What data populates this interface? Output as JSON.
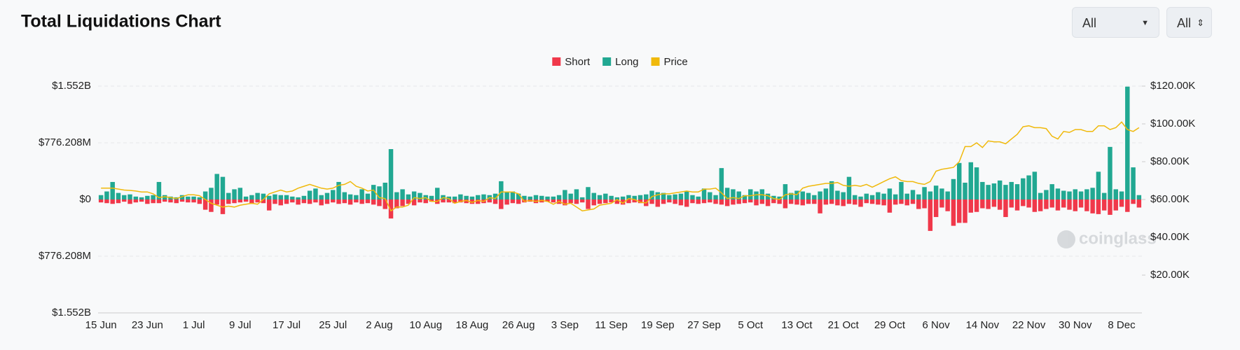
{
  "filters": [
    "All",
    "All"
  ],
  "watermark": "coinglass",
  "chart_data": {
    "type": "bar",
    "title": "Total Liquidations Chart",
    "legend": "top",
    "grid": true,
    "categories": [
      "15 Jun",
      null,
      null,
      null,
      null,
      null,
      null,
      null,
      "23 Jun",
      null,
      null,
      null,
      null,
      null,
      null,
      null,
      "1 Jul",
      null,
      null,
      null,
      null,
      null,
      null,
      null,
      "9 Jul",
      null,
      null,
      null,
      null,
      null,
      null,
      null,
      "17 Jul",
      null,
      null,
      null,
      null,
      null,
      null,
      null,
      "25 Jul",
      null,
      null,
      null,
      null,
      null,
      null,
      null,
      "2 Aug",
      null,
      null,
      null,
      null,
      null,
      null,
      null,
      "10 Aug",
      null,
      null,
      null,
      null,
      null,
      null,
      null,
      "18 Aug",
      null,
      null,
      null,
      null,
      null,
      null,
      null,
      "26 Aug",
      null,
      null,
      null,
      null,
      null,
      null,
      null,
      "3 Sep",
      null,
      null,
      null,
      null,
      null,
      null,
      null,
      "11 Sep",
      null,
      null,
      null,
      null,
      null,
      null,
      null,
      "19 Sep",
      null,
      null,
      null,
      null,
      null,
      null,
      null,
      "27 Sep",
      null,
      null,
      null,
      null,
      null,
      null,
      null,
      "5 Oct",
      null,
      null,
      null,
      null,
      null,
      null,
      null,
      "13 Oct",
      null,
      null,
      null,
      null,
      null,
      null,
      null,
      "21 Oct",
      null,
      null,
      null,
      null,
      null,
      null,
      null,
      "29 Oct",
      null,
      null,
      null,
      null,
      null,
      null,
      null,
      "6 Nov",
      null,
      null,
      null,
      null,
      null,
      null,
      null,
      "14 Nov",
      null,
      null,
      null,
      null,
      null,
      null,
      null,
      "22 Nov",
      null,
      null,
      null,
      null,
      null,
      null,
      null,
      "30 Nov",
      null,
      null,
      null,
      null,
      null,
      null,
      null,
      "8 Dec",
      null,
      null,
      null
    ],
    "series": [
      {
        "name": "Short",
        "color": "#f0384a",
        "values": [
          -40000000.0,
          -50000000.0,
          -60000000.0,
          -50000000.0,
          -30000000.0,
          -60000000.0,
          -40000000.0,
          -30000000.0,
          -60000000.0,
          -50000000.0,
          -50000000.0,
          -30000000.0,
          -40000000.0,
          -50000000.0,
          -30000000.0,
          -40000000.0,
          -40000000.0,
          -60000000.0,
          -140000000.0,
          -170000000.0,
          -70000000.0,
          -200000000.0,
          -60000000.0,
          -50000000.0,
          -40000000.0,
          -30000000.0,
          -60000000.0,
          -40000000.0,
          -50000000.0,
          -150000000.0,
          -60000000.0,
          -80000000.0,
          -60000000.0,
          -40000000.0,
          -70000000.0,
          -50000000.0,
          -60000000.0,
          -40000000.0,
          -80000000.0,
          -60000000.0,
          -40000000.0,
          -60000000.0,
          -50000000.0,
          -70000000.0,
          -40000000.0,
          -60000000.0,
          -50000000.0,
          -70000000.0,
          -90000000.0,
          -130000000.0,
          -260000000.0,
          -120000000.0,
          -90000000.0,
          -60000000.0,
          -80000000.0,
          -40000000.0,
          -50000000.0,
          -30000000.0,
          -60000000.0,
          -40000000.0,
          -40000000.0,
          -50000000.0,
          -40000000.0,
          -50000000.0,
          -60000000.0,
          -60000000.0,
          -50000000.0,
          -40000000.0,
          -60000000.0,
          -130000000.0,
          -70000000.0,
          -50000000.0,
          -60000000.0,
          -40000000.0,
          -30000000.0,
          -50000000.0,
          -40000000.0,
          -30000000.0,
          -40000000.0,
          -60000000.0,
          -80000000.0,
          -50000000.0,
          -60000000.0,
          -40000000.0,
          -130000000.0,
          -80000000.0,
          -60000000.0,
          -50000000.0,
          -40000000.0,
          -60000000.0,
          -70000000.0,
          -50000000.0,
          -40000000.0,
          -50000000.0,
          -90000000.0,
          -60000000.0,
          -100000000.0,
          -60000000.0,
          -40000000.0,
          -60000000.0,
          -80000000.0,
          -100000000.0,
          -50000000.0,
          -60000000.0,
          -50000000.0,
          -40000000.0,
          -60000000.0,
          -70000000.0,
          -90000000.0,
          -70000000.0,
          -60000000.0,
          -50000000.0,
          -40000000.0,
          -80000000.0,
          -60000000.0,
          -90000000.0,
          -50000000.0,
          -60000000.0,
          -120000000.0,
          -60000000.0,
          -70000000.0,
          -80000000.0,
          -60000000.0,
          -60000000.0,
          -190000000.0,
          -70000000.0,
          -60000000.0,
          -80000000.0,
          -90000000.0,
          -60000000.0,
          -70000000.0,
          -100000000.0,
          -50000000.0,
          -60000000.0,
          -70000000.0,
          -80000000.0,
          -180000000.0,
          -70000000.0,
          -60000000.0,
          -80000000.0,
          -60000000.0,
          -130000000.0,
          -120000000.0,
          -430000000.0,
          -240000000.0,
          -110000000.0,
          -160000000.0,
          -360000000.0,
          -320000000.0,
          -320000000.0,
          -180000000.0,
          -170000000.0,
          -120000000.0,
          -130000000.0,
          -100000000.0,
          -140000000.0,
          -240000000.0,
          -110000000.0,
          -150000000.0,
          -90000000.0,
          -110000000.0,
          -170000000.0,
          -160000000.0,
          -130000000.0,
          -110000000.0,
          -150000000.0,
          -110000000.0,
          -140000000.0,
          -160000000.0,
          -110000000.0,
          -160000000.0,
          -190000000.0,
          -200000000.0,
          -150000000.0,
          -210000000.0,
          -150000000.0,
          -100000000.0,
          -170000000.0,
          -60000000.0,
          -110000000.0
        ]
      },
      {
        "name": "Long",
        "color": "#21a892",
        "values": [
          60000000.0,
          110000000.0,
          240000000.0,
          90000000.0,
          60000000.0,
          70000000.0,
          40000000.0,
          30000000.0,
          50000000.0,
          60000000.0,
          240000000.0,
          60000000.0,
          40000000.0,
          30000000.0,
          60000000.0,
          40000000.0,
          40000000.0,
          30000000.0,
          110000000.0,
          160000000.0,
          350000000.0,
          310000000.0,
          90000000.0,
          140000000.0,
          160000000.0,
          40000000.0,
          60000000.0,
          90000000.0,
          80000000.0,
          50000000.0,
          70000000.0,
          60000000.0,
          60000000.0,
          40000000.0,
          30000000.0,
          50000000.0,
          120000000.0,
          150000000.0,
          60000000.0,
          90000000.0,
          130000000.0,
          240000000.0,
          100000000.0,
          70000000.0,
          60000000.0,
          140000000.0,
          80000000.0,
          200000000.0,
          180000000.0,
          230000000.0,
          690000000.0,
          100000000.0,
          140000000.0,
          70000000.0,
          110000000.0,
          90000000.0,
          60000000.0,
          50000000.0,
          160000000.0,
          60000000.0,
          40000000.0,
          40000000.0,
          70000000.0,
          50000000.0,
          40000000.0,
          60000000.0,
          70000000.0,
          60000000.0,
          80000000.0,
          250000000.0,
          100000000.0,
          110000000.0,
          80000000.0,
          50000000.0,
          40000000.0,
          60000000.0,
          50000000.0,
          40000000.0,
          40000000.0,
          60000000.0,
          130000000.0,
          80000000.0,
          140000000.0,
          30000000.0,
          170000000.0,
          90000000.0,
          60000000.0,
          80000000.0,
          50000000.0,
          30000000.0,
          40000000.0,
          60000000.0,
          50000000.0,
          60000000.0,
          70000000.0,
          120000000.0,
          100000000.0,
          90000000.0,
          60000000.0,
          70000000.0,
          80000000.0,
          110000000.0,
          60000000.0,
          40000000.0,
          150000000.0,
          100000000.0,
          60000000.0,
          430000000.0,
          160000000.0,
          140000000.0,
          110000000.0,
          60000000.0,
          140000000.0,
          110000000.0,
          140000000.0,
          80000000.0,
          50000000.0,
          40000000.0,
          210000000.0,
          90000000.0,
          120000000.0,
          110000000.0,
          90000000.0,
          60000000.0,
          110000000.0,
          150000000.0,
          250000000.0,
          120000000.0,
          100000000.0,
          310000000.0,
          60000000.0,
          40000000.0,
          80000000.0,
          60000000.0,
          100000000.0,
          80000000.0,
          150000000.0,
          70000000.0,
          240000000.0,
          80000000.0,
          130000000.0,
          70000000.0,
          170000000.0,
          110000000.0,
          190000000.0,
          150000000.0,
          110000000.0,
          280000000.0,
          500000000.0,
          230000000.0,
          510000000.0,
          440000000.0,
          240000000.0,
          200000000.0,
          220000000.0,
          260000000.0,
          200000000.0,
          240000000.0,
          210000000.0,
          290000000.0,
          330000000.0,
          380000000.0,
          90000000.0,
          130000000.0,
          210000000.0,
          150000000.0,
          120000000.0,
          110000000.0,
          140000000.0,
          110000000.0,
          140000000.0,
          160000000.0,
          380000000.0,
          90000000.0,
          720000000.0,
          140000000.0,
          110000000.0,
          1545000000.0,
          440000000.0,
          60000000.0
        ]
      },
      {
        "name": "Price",
        "color": "#f0b90b",
        "type": "line",
        "axis": "y2",
        "values": [
          66000.0,
          66000.0,
          66000.0,
          65500.0,
          65000.0,
          64800.0,
          64500.0,
          64000.0,
          64000.0,
          63000.0,
          61000.0,
          61500.0,
          61000.0,
          60500.0,
          61500.0,
          62500.0,
          62500.0,
          62000.0,
          60000.0,
          58000.0,
          57000.0,
          56000.0,
          56500.0,
          56000.0,
          57000.0,
          57500.0,
          58000.0,
          57500.0,
          60000.0,
          63000.0,
          64000.0,
          65000.0,
          64000.0,
          64500.0,
          66000.0,
          67000.0,
          68000.0,
          67000.0,
          66000.0,
          65500.0,
          66000.0,
          67500.0,
          68000.0,
          69500.0,
          67000.0,
          66000.0,
          64500.0,
          65000.0,
          61000.0,
          60500.0,
          54000.0,
          56000.0,
          56000.0,
          57000.0,
          61000.0,
          60500.0,
          61000.0,
          59000.0,
          59000.0,
          61000.0,
          60500.0,
          58000.0,
          59000.0,
          59500.0,
          58500.0,
          59500.0,
          59000.0,
          61000.0,
          60500.0,
          64000.0,
          64000.0,
          64000.0,
          63000.0,
          59000.0,
          59500.0,
          59000.0,
          59500.0,
          59000.0,
          57500.0,
          59000.0,
          57500.0,
          58000.0,
          56000.0,
          54000.0,
          54500.0,
          55000.0,
          57000.0,
          57500.0,
          58000.0,
          60000.0,
          58000.0,
          60500.0,
          60000.0,
          58500.0,
          58200.0,
          61500.0,
          62500.0,
          63000.0,
          63000.0,
          63500.0,
          64000.0,
          64500.0,
          64000.0,
          64000.0,
          65500.0,
          65500.0,
          66000.0,
          63500.0,
          60500.0,
          61000.0,
          60500.0,
          62000.0,
          62000.0,
          62500.0,
          62500.0,
          62000.0,
          60500.0,
          60000.0,
          62500.0,
          63000.0,
          62500.0,
          66000.0,
          67000.0,
          67500.0,
          68000.0,
          68500.0,
          68500.0,
          69000.0,
          67500.0,
          67000.0,
          67500.0,
          67000.0,
          68000.0,
          66500.0,
          68000.0,
          69500.0,
          71000.0,
          72000.0,
          70000.0,
          69500.0,
          69500.0,
          68500.0,
          68000.0,
          69500.0,
          75000.0,
          76000.0,
          76500.0,
          77000.0,
          80000.0,
          88000.0,
          88000.0,
          90000.0,
          87500.0,
          91000.0,
          90500.0,
          90500.0,
          89500.0,
          92000.0,
          94500.0,
          98500.0,
          99000.0,
          98000.0,
          98000.0,
          97500.0,
          93500.0,
          92000.0,
          96000.0,
          95500.0,
          97000.0,
          97000.0,
          96000.0,
          96000.0,
          99000.0,
          99000.0,
          97000.0,
          98000.0,
          101000.0,
          97000.0,
          96000.0,
          98000.0
        ]
      }
    ],
    "ylim": [
      -1552416000.0,
      1552416000.0
    ],
    "yticks": [
      {
        "value": -1552416000.0,
        "label": "$1.552B"
      },
      {
        "value": -776208000.0,
        "label": "$776.208M"
      },
      {
        "value": 0,
        "label": "$0"
      },
      {
        "value": 776208000.0,
        "label": "$776.208M"
      },
      {
        "value": 1552416000.0,
        "label": "$1.552B"
      }
    ],
    "y2lim": [
      0,
      120000
    ],
    "y2ticks": [
      {
        "value": 20000,
        "label": "$20.00K"
      },
      {
        "value": 40000,
        "label": "$40.00K"
      },
      {
        "value": 60000,
        "label": "$60.00K"
      },
      {
        "value": 80000,
        "label": "$80.00K"
      },
      {
        "value": 100000,
        "label": "$100.00K"
      },
      {
        "value": 120000,
        "label": "$120.00K"
      }
    ]
  }
}
